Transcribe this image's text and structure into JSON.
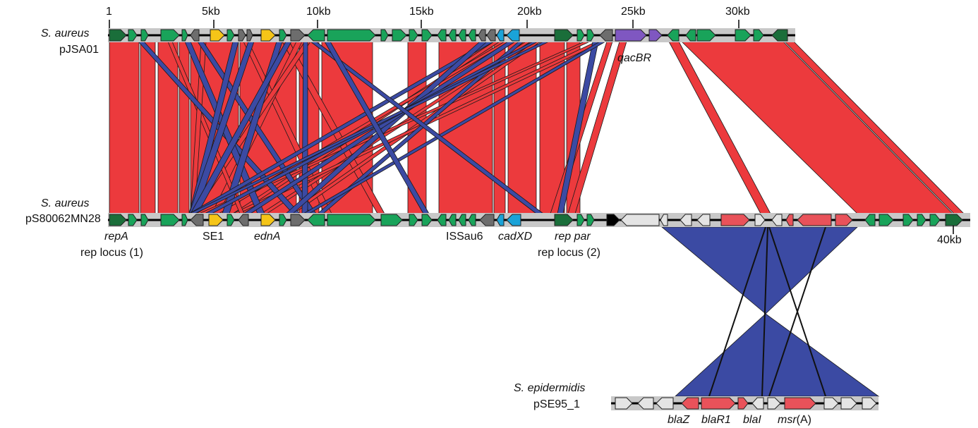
{
  "colors": {
    "forward_match": "#ec3a3d",
    "inverted_match": "#3b4aa3",
    "backbone": "#c8c8c8",
    "gene_green": "#19a35a",
    "gene_darkgreen": "#1a6e3a",
    "gene_yellow": "#f5c518",
    "gene_gray": "#6d6d6d",
    "gene_cyan": "#1aa3d8",
    "gene_purple": "#7f57c1",
    "gene_red": "#e9525a",
    "gene_white": "#e4e4e4",
    "gene_black": "#000000"
  },
  "scale_top": {
    "ticks": [
      "1",
      "5kb",
      "10kb",
      "15kb",
      "20kb",
      "25kb",
      "30kb"
    ]
  },
  "scale_mid": {
    "end_label": "40kb"
  },
  "plasmids": {
    "top": {
      "species": "S. aureus",
      "name": "pJSA01"
    },
    "mid": {
      "species": "S. aureus",
      "name": "pS80062MN28"
    },
    "bottom": {
      "species": "S. epidermidis",
      "name": "pSE95_1"
    }
  },
  "gene_labels": {
    "qacBR": "qacBR",
    "repA": "repA",
    "rep_locus_1": "rep locus (1)",
    "SE1": "SE1",
    "ednA": "ednA",
    "ISSau6": "ISSau6",
    "cadXD": "cadXD",
    "rep_par": "rep par",
    "rep_locus_2": "rep locus (2)",
    "blaZ": "blaZ",
    "blaR1": "blaR1",
    "blaI": "blaI",
    "msr_gene": "msr",
    "msr_suffix": "(A)"
  }
}
